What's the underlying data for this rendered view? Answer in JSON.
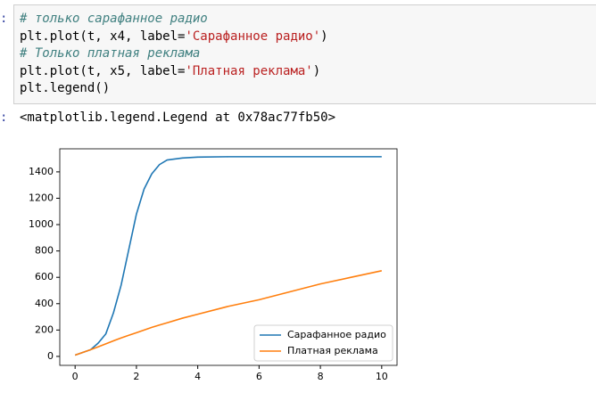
{
  "code": {
    "lines": [
      [
        "# только сарафанное радио"
      ],
      [
        "plt.plot(t, x4, label=",
        "'Сарафанное радио'",
        ")"
      ],
      [
        "# Только платная реклама"
      ],
      [
        "plt.plot(t, x5, label=",
        "'Платная реклама'",
        ")"
      ],
      [
        "plt.legend()"
      ]
    ]
  },
  "output": {
    "text": "<matplotlib.legend.Legend at 0x78ac77fb50>"
  },
  "chart_data": {
    "type": "line",
    "x": [
      0,
      0.5,
      0.75,
      1,
      1.25,
      1.5,
      1.75,
      2,
      2.25,
      2.5,
      2.75,
      3,
      3.5,
      4,
      5,
      6,
      7,
      8,
      9,
      10
    ],
    "series": [
      {
        "name": "Сарафанное радио",
        "color": "#1f77b4",
        "values": [
          10,
          50,
          100,
          170,
          330,
          540,
          810,
          1080,
          1270,
          1385,
          1455,
          1490,
          1505,
          1512,
          1515,
          1515,
          1515,
          1515,
          1515,
          1515
        ]
      },
      {
        "name": "Платная реклама",
        "color": "#ff7f0e",
        "values": [
          10,
          50,
          72,
          95,
          118,
          140,
          160,
          180,
          200,
          220,
          238,
          255,
          290,
          320,
          380,
          430,
          490,
          550,
          600,
          650
        ]
      }
    ],
    "xlim": [
      -0.5,
      10.5
    ],
    "ylim": [
      -68,
      1575
    ],
    "xticks": [
      0,
      2,
      4,
      6,
      8,
      10
    ],
    "yticks": [
      0,
      200,
      400,
      600,
      800,
      1000,
      1200,
      1400
    ],
    "legend": "lower right"
  }
}
